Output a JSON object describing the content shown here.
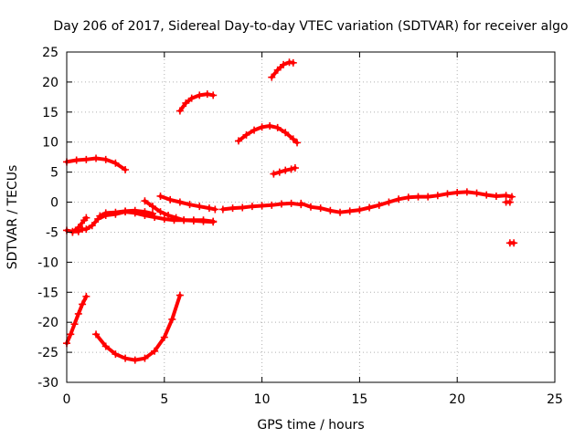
{
  "chart_data": {
    "type": "scatter",
    "title": "Day 206 of 2017, Sidereal Day-to-day VTEC variation (SDTVAR) for receiver algo",
    "xlabel": "GPS time / hours",
    "ylabel": "SDTVAR / TECUs",
    "xlim": [
      0,
      25
    ],
    "ylim": [
      -30,
      25
    ],
    "xticks": [
      0,
      5,
      10,
      15,
      20,
      25
    ],
    "yticks": [
      -30,
      -25,
      -20,
      -15,
      -10,
      -5,
      0,
      5,
      10,
      15,
      20,
      25
    ],
    "grid": true,
    "marker_color": "#ff0000",
    "series": [
      {
        "name": "track-1",
        "points": [
          [
            0.0,
            -4.7
          ],
          [
            0.3,
            -4.9
          ],
          [
            0.6,
            -4.9
          ],
          [
            0.8,
            -4.5
          ],
          [
            1.0,
            -4.5
          ],
          [
            1.3,
            -3.9
          ],
          [
            1.6,
            -2.8
          ],
          [
            2.0,
            -2.2
          ],
          [
            2.5,
            -2.0
          ],
          [
            3.0,
            -1.6
          ],
          [
            3.5,
            -1.8
          ],
          [
            4.0,
            -2.2
          ],
          [
            4.5,
            -2.5
          ],
          [
            5.0,
            -2.8
          ],
          [
            5.5,
            -3.0
          ],
          [
            6.0,
            -3.0
          ],
          [
            6.5,
            -3.0
          ],
          [
            7.0,
            -3.0
          ],
          [
            7.5,
            -3.2
          ]
        ]
      },
      {
        "name": "track-2",
        "points": [
          [
            0.3,
            -5.0
          ],
          [
            0.6,
            -4.2
          ],
          [
            0.9,
            -3.0
          ],
          [
            1.0,
            -2.6
          ]
        ]
      },
      {
        "name": "track-3",
        "points": [
          [
            1.7,
            -2.3
          ],
          [
            2.0,
            -1.8
          ],
          [
            2.5,
            -1.7
          ],
          [
            3.0,
            -1.5
          ],
          [
            3.5,
            -1.4
          ],
          [
            4.0,
            -1.6
          ],
          [
            4.4,
            -1.9
          ]
        ]
      },
      {
        "name": "track-4",
        "points": [
          [
            0.0,
            6.7
          ],
          [
            0.5,
            7.0
          ],
          [
            1.0,
            7.1
          ],
          [
            1.5,
            7.3
          ],
          [
            2.0,
            7.1
          ],
          [
            2.5,
            6.5
          ],
          [
            3.0,
            5.4
          ]
        ]
      },
      {
        "name": "track-5",
        "points": [
          [
            4.0,
            0.2
          ],
          [
            4.4,
            -0.7
          ],
          [
            4.8,
            -1.6
          ],
          [
            5.2,
            -2.2
          ],
          [
            5.6,
            -2.6
          ],
          [
            6.0,
            -3.0
          ],
          [
            6.5,
            -3.1
          ],
          [
            7.0,
            -3.2
          ],
          [
            7.5,
            -3.3
          ]
        ]
      },
      {
        "name": "track-6",
        "points": [
          [
            4.8,
            1.0
          ],
          [
            5.3,
            0.4
          ],
          [
            5.8,
            0.0
          ],
          [
            6.3,
            -0.4
          ],
          [
            6.8,
            -0.7
          ],
          [
            7.3,
            -1.0
          ],
          [
            7.6,
            -1.2
          ]
        ]
      },
      {
        "name": "track-7",
        "points": [
          [
            5.8,
            15.2
          ],
          [
            6.1,
            16.5
          ],
          [
            6.4,
            17.3
          ],
          [
            6.8,
            17.8
          ],
          [
            7.2,
            18.0
          ],
          [
            7.5,
            17.8
          ]
        ]
      },
      {
        "name": "track-8",
        "points": [
          [
            8.0,
            -1.2
          ],
          [
            8.5,
            -1.0
          ],
          [
            9.0,
            -0.9
          ],
          [
            9.5,
            -0.7
          ],
          [
            10.0,
            -0.6
          ],
          [
            10.5,
            -0.5
          ],
          [
            11.0,
            -0.3
          ],
          [
            11.5,
            -0.2
          ],
          [
            12.0,
            -0.4
          ]
        ]
      },
      {
        "name": "track-9",
        "points": [
          [
            8.8,
            10.2
          ],
          [
            9.2,
            11.2
          ],
          [
            9.6,
            12.0
          ],
          [
            10.0,
            12.5
          ],
          [
            10.4,
            12.7
          ],
          [
            10.8,
            12.4
          ],
          [
            11.2,
            11.6
          ],
          [
            11.6,
            10.5
          ],
          [
            11.8,
            9.9
          ]
        ]
      },
      {
        "name": "track-10",
        "points": [
          [
            10.5,
            20.8
          ],
          [
            10.8,
            22.0
          ],
          [
            11.1,
            22.9
          ],
          [
            11.4,
            23.3
          ],
          [
            11.6,
            23.2
          ]
        ]
      },
      {
        "name": "track-11",
        "points": [
          [
            10.6,
            4.7
          ],
          [
            10.9,
            5.0
          ],
          [
            11.2,
            5.3
          ],
          [
            11.5,
            5.5
          ],
          [
            11.7,
            5.7
          ]
        ]
      },
      {
        "name": "track-12",
        "points": [
          [
            12.0,
            -0.2
          ],
          [
            12.5,
            -0.8
          ],
          [
            13.0,
            -1.0
          ],
          [
            13.5,
            -1.4
          ],
          [
            14.0,
            -1.7
          ],
          [
            14.5,
            -1.5
          ],
          [
            15.0,
            -1.3
          ],
          [
            15.5,
            -0.9
          ],
          [
            16.0,
            -0.5
          ],
          [
            16.5,
            0.0
          ],
          [
            17.0,
            0.5
          ],
          [
            17.5,
            0.8
          ],
          [
            18.0,
            0.9
          ],
          [
            18.5,
            0.9
          ],
          [
            19.0,
            1.1
          ],
          [
            19.5,
            1.4
          ],
          [
            20.0,
            1.6
          ],
          [
            20.5,
            1.7
          ],
          [
            21.0,
            1.5
          ],
          [
            21.5,
            1.2
          ],
          [
            22.0,
            1.0
          ],
          [
            22.5,
            1.1
          ],
          [
            22.8,
            0.9
          ]
        ]
      },
      {
        "name": "track-13",
        "points": [
          [
            22.5,
            0.0
          ],
          [
            22.7,
            0.0
          ]
        ]
      },
      {
        "name": "track-14",
        "points": [
          [
            22.7,
            -6.8
          ],
          [
            22.9,
            -6.8
          ]
        ]
      },
      {
        "name": "track-15",
        "points": [
          [
            0.0,
            -23.5
          ],
          [
            0.2,
            -22.0
          ],
          [
            0.4,
            -20.3
          ],
          [
            0.6,
            -18.6
          ],
          [
            0.8,
            -17.0
          ],
          [
            1.0,
            -15.7
          ]
        ]
      },
      {
        "name": "track-16",
        "points": [
          [
            1.5,
            -22.0
          ],
          [
            2.0,
            -24.0
          ],
          [
            2.5,
            -25.3
          ],
          [
            3.0,
            -26.0
          ],
          [
            3.5,
            -26.3
          ],
          [
            4.0,
            -26.0
          ],
          [
            4.5,
            -24.8
          ],
          [
            5.0,
            -22.5
          ],
          [
            5.4,
            -19.5
          ],
          [
            5.8,
            -15.5
          ]
        ]
      }
    ]
  }
}
